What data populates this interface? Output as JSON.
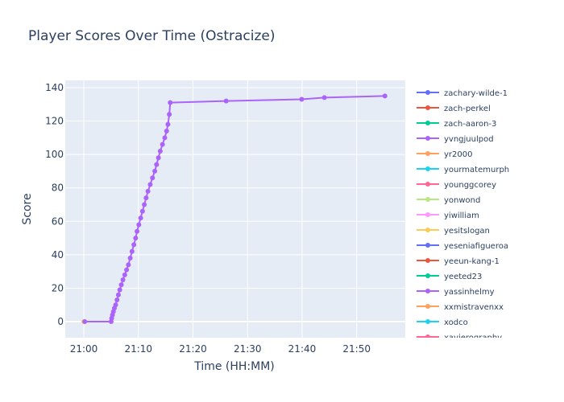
{
  "chart_data": {
    "type": "line",
    "title": "Player Scores Over Time (Ostracize)",
    "xlabel": "Time (HH:MM)",
    "ylabel": "Score",
    "xlim": [
      "20:56:36",
      "21:58:54"
    ],
    "ylim": [
      -9.6,
      144.3
    ],
    "x_ticks": [
      "21:00",
      "21:10",
      "21:20",
      "21:30",
      "21:40",
      "21:50"
    ],
    "y_ticks": [
      0,
      20,
      40,
      60,
      80,
      100,
      120,
      140
    ],
    "grid": true,
    "legend_placement": "right",
    "plot_bg": "#e5ecf6",
    "legend": [
      {
        "name": "zachary-wilde-1",
        "color": "#636efa"
      },
      {
        "name": "zach-perkel",
        "color": "#EF553B"
      },
      {
        "name": "zach-aaron-3",
        "color": "#00cc96"
      },
      {
        "name": "yvngjuulpod",
        "color": "#ab63fa"
      },
      {
        "name": "yr2000",
        "color": "#FFA15A"
      },
      {
        "name": "yourmatemurph",
        "color": "#19d3f3"
      },
      {
        "name": "younggcorey",
        "color": "#FF6692"
      },
      {
        "name": "yonwond",
        "color": "#B6E880"
      },
      {
        "name": "yiwilliam",
        "color": "#FF97FF"
      },
      {
        "name": "yesitslogan",
        "color": "#FECB52"
      },
      {
        "name": "yeseniafigueroa",
        "color": "#636efa"
      },
      {
        "name": "yeeun-kang-1",
        "color": "#EF553B"
      },
      {
        "name": "yeeted23",
        "color": "#00cc96"
      },
      {
        "name": "yassinhelmy",
        "color": "#ab63fa"
      },
      {
        "name": "xxmistravenxx",
        "color": "#FFA15A"
      },
      {
        "name": "xodco",
        "color": "#19d3f3"
      },
      {
        "name": "xavierography",
        "color": "#FF6692"
      }
    ],
    "series": [
      {
        "name": "yesitslogan",
        "color": "#FECB52",
        "x": [
          "21:00:00"
        ],
        "y": [
          0
        ]
      },
      {
        "name": "yvngjuulpod",
        "color": "#ab63fa",
        "x": [
          "21:00:10",
          "21:05:00",
          "21:05:06",
          "21:05:15",
          "21:05:25",
          "21:05:36",
          "21:05:50",
          "21:06:05",
          "21:06:20",
          "21:06:35",
          "21:06:52",
          "21:07:10",
          "21:07:30",
          "21:07:50",
          "21:08:10",
          "21:08:30",
          "21:08:50",
          "21:09:10",
          "21:09:30",
          "21:09:45",
          "21:10:05",
          "21:10:25",
          "21:10:45",
          "21:11:05",
          "21:11:25",
          "21:11:45",
          "21:12:10",
          "21:12:35",
          "21:13:00",
          "21:13:20",
          "21:13:40",
          "21:14:00",
          "21:14:25",
          "21:14:50",
          "21:15:10",
          "21:15:25",
          "21:15:40",
          "21:15:50",
          "21:26:05",
          "21:39:55",
          "21:44:05",
          "21:55:10"
        ],
        "y": [
          0,
          0,
          2,
          4,
          6,
          8,
          10,
          13,
          16,
          19,
          22,
          25,
          28,
          31,
          34,
          38,
          42,
          46,
          50,
          54,
          58,
          62,
          66,
          70,
          74,
          78,
          82,
          86,
          90,
          94,
          98,
          102,
          106,
          110,
          114,
          118,
          124,
          131,
          132,
          133,
          134,
          135
        ]
      }
    ]
  }
}
